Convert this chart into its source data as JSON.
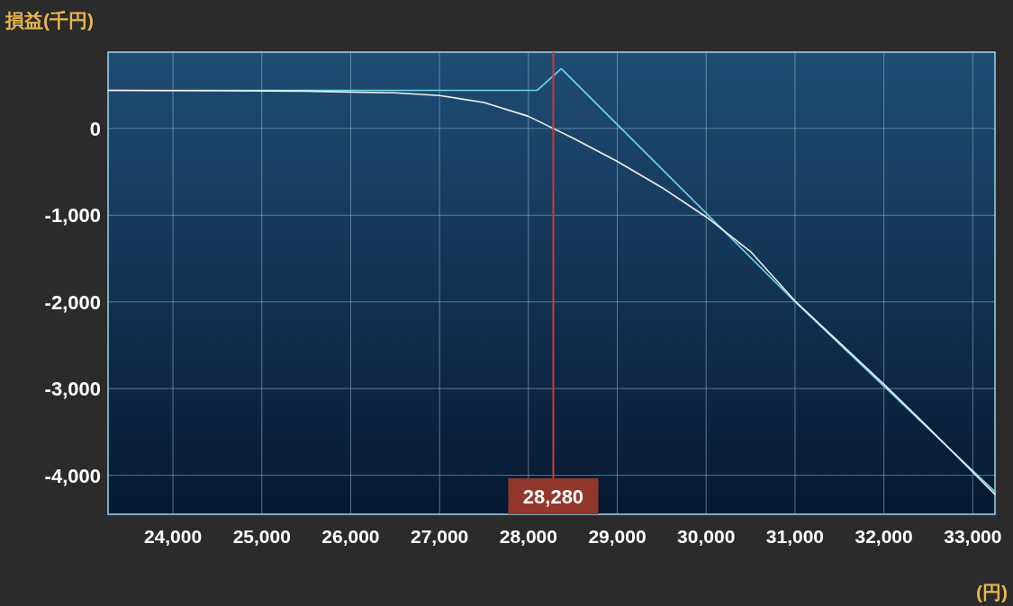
{
  "chart_data": {
    "type": "line",
    "ylabel": "損益(千円)",
    "xlabel": "(円)",
    "xlim": [
      23270,
      33250
    ],
    "ylim": [
      -4450,
      880
    ],
    "xticks": [
      {
        "value": 24000,
        "label": "24,000"
      },
      {
        "value": 25000,
        "label": "25,000"
      },
      {
        "value": 26000,
        "label": "26,000"
      },
      {
        "value": 27000,
        "label": "27,000"
      },
      {
        "value": 28000,
        "label": "28,000"
      },
      {
        "value": 29000,
        "label": "29,000"
      },
      {
        "value": 30000,
        "label": "30,000"
      },
      {
        "value": 31000,
        "label": "31,000"
      },
      {
        "value": 32000,
        "label": "32,000"
      },
      {
        "value": 33000,
        "label": "33,000"
      }
    ],
    "yticks": [
      0,
      {
        "value": -1000,
        "label": "-1,000"
      },
      {
        "value": -2000,
        "label": "-2,000"
      },
      {
        "value": -3000,
        "label": "-3,000"
      },
      {
        "value": -4000,
        "label": "-4,000"
      }
    ],
    "grid": true,
    "ref_lines": [
      {
        "axis": "x",
        "value": 28280,
        "label": "28,280",
        "color": "#d03a32"
      }
    ],
    "series": [
      {
        "color": "#6fd8ea",
        "x": [
          23270,
          28100,
          28370,
          31000,
          33250
        ],
        "values": [
          440,
          440,
          690,
          -2000,
          -4190
        ]
      },
      {
        "color": "#f0f0f0",
        "x": [
          23270,
          25500,
          26000,
          26500,
          27000,
          27500,
          28000,
          28280,
          28500,
          29000,
          29500,
          30000,
          30500,
          31000,
          31500,
          32000,
          32500,
          33250
        ],
        "values": [
          440,
          430,
          420,
          410,
          380,
          300,
          140,
          0,
          -110,
          -380,
          -680,
          -1020,
          -1420,
          -1990,
          -2470,
          -2950,
          -3450,
          -4220
        ]
      }
    ]
  }
}
